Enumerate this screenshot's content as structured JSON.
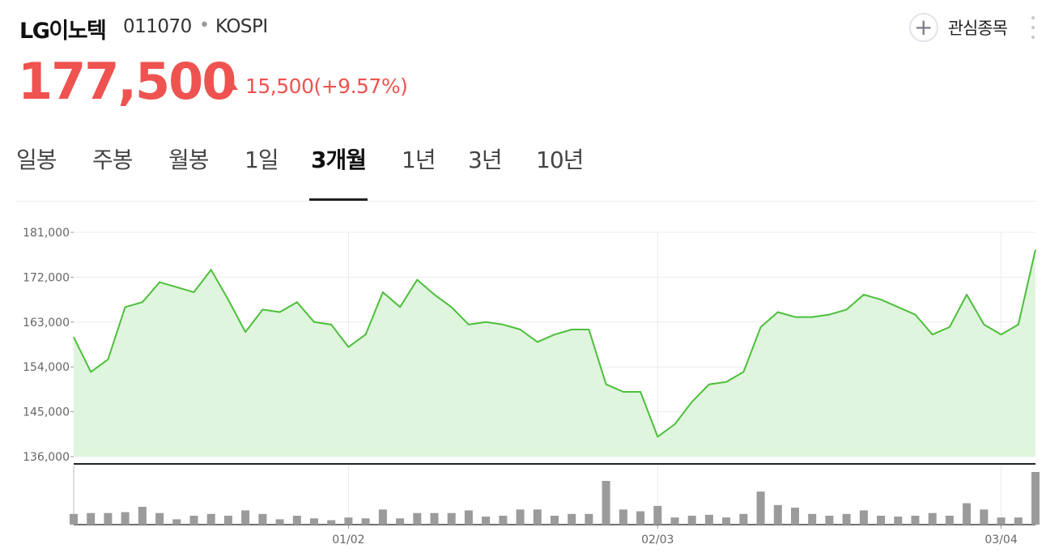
{
  "header": {
    "name": "LG이노텍",
    "code": "011070",
    "separator": "•",
    "market": "KOSPI",
    "watchlist_label": "관심종목",
    "plus_icon": "+"
  },
  "quote": {
    "price": "177,500",
    "change": "15,500(+9.57%)",
    "up_color": "#ee5350"
  },
  "tabs": [
    {
      "label": "일봉",
      "active": false
    },
    {
      "label": "주봉",
      "active": false
    },
    {
      "label": "월봉",
      "active": false
    },
    {
      "label": "1일",
      "active": false
    },
    {
      "label": "3개월",
      "active": true
    },
    {
      "label": "1년",
      "active": false
    },
    {
      "label": "3년",
      "active": false
    },
    {
      "label": "10년",
      "active": false
    }
  ],
  "chart_data": {
    "type": "area",
    "line_color": "#4cbf3a",
    "fill_color": "#dff5dd",
    "volume_color": "#9b9b9b",
    "y_ticks": [
      181000,
      172000,
      163000,
      154000,
      145000,
      136000
    ],
    "y_tick_labels": [
      "181,000",
      "172,000",
      "163,000",
      "154,000",
      "145,000",
      "136,000"
    ],
    "ylim": [
      136000,
      181000
    ],
    "x_tick_labels": [
      "01/02",
      "02/03",
      "03/04"
    ],
    "x_tick_index": [
      16,
      34,
      54
    ],
    "price": [
      160000,
      153000,
      155500,
      166000,
      167000,
      171000,
      170000,
      169000,
      173500,
      167500,
      161000,
      165500,
      165000,
      167000,
      163000,
      162500,
      158000,
      160500,
      169000,
      166000,
      171500,
      168500,
      166000,
      162500,
      163000,
      162500,
      161500,
      159000,
      160500,
      161500,
      161500,
      150500,
      149000,
      149000,
      140000,
      142500,
      147000,
      150500,
      151000,
      153000,
      162000,
      165000,
      164000,
      164000,
      164500,
      165500,
      168500,
      167500,
      166000,
      164500,
      160500,
      162000,
      168500,
      162500,
      160500,
      162500,
      177500
    ],
    "volume": [
      12,
      13,
      13,
      14,
      20,
      13,
      6,
      10,
      12,
      10,
      16,
      12,
      6,
      10,
      7,
      5,
      8,
      7,
      17,
      7,
      13,
      13,
      13,
      16,
      9,
      10,
      17,
      17,
      10,
      12,
      12,
      49,
      17,
      15,
      21,
      8,
      10,
      11,
      8,
      12,
      37,
      22,
      19,
      12,
      10,
      12,
      16,
      10,
      9,
      10,
      13,
      10,
      24,
      17,
      8,
      8,
      59
    ]
  }
}
